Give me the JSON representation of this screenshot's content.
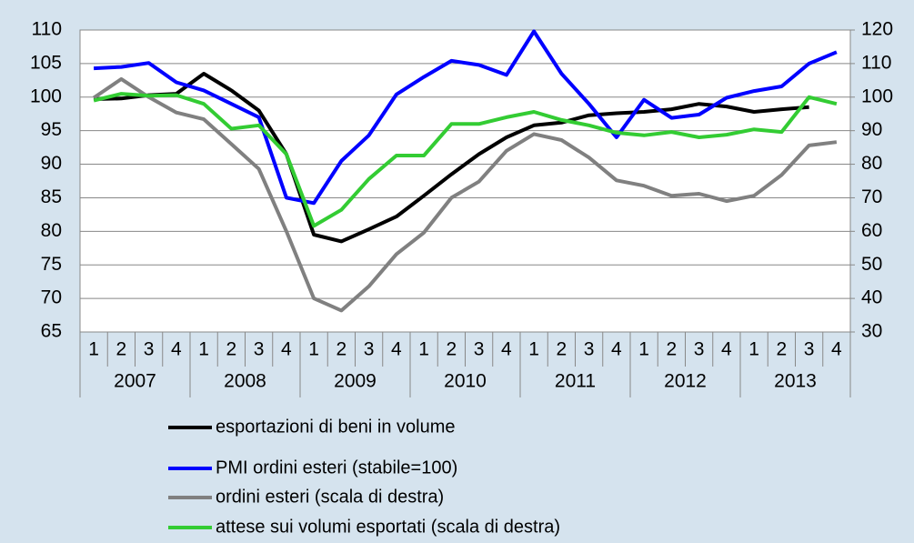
{
  "chart_data": {
    "type": "line",
    "categories": [
      "1",
      "2",
      "3",
      "4",
      "1",
      "2",
      "3",
      "4",
      "1",
      "2",
      "3",
      "4",
      "1",
      "2",
      "3",
      "4",
      "1",
      "2",
      "3",
      "4",
      "1",
      "2",
      "3",
      "4",
      "1",
      "2",
      "3",
      "4"
    ],
    "groups": [
      "2007",
      "2008",
      "2009",
      "2010",
      "2011",
      "2012",
      "2013"
    ],
    "ylim": [
      65,
      110
    ],
    "yticks": [
      65,
      70,
      75,
      80,
      85,
      90,
      95,
      100,
      105,
      110
    ],
    "y2lim": [
      30,
      120
    ],
    "y2ticks": [
      30,
      40,
      50,
      60,
      70,
      80,
      90,
      100,
      110,
      120
    ],
    "grid": true,
    "series": [
      {
        "name": "esportazioni di beni in volume",
        "color": "#000000",
        "values": [
          99.7,
          99.8,
          100.3,
          100.5,
          103.5,
          101,
          98,
          91.5,
          79.5,
          78.5,
          80.3,
          82.2,
          85.3,
          88.5,
          91.5,
          94,
          95.8,
          96.2,
          97.3,
          97.6,
          97.8,
          98.2,
          99,
          98.6,
          97.8,
          98.2,
          98.5,
          null
        ]
      },
      {
        "name": "PMI ordini esteri (stabile=100)",
        "color": "#0000ff",
        "values": [
          104.3,
          104.5,
          105.1,
          102.2,
          101,
          99,
          97,
          85,
          84.2,
          90.5,
          94.3,
          100.4,
          103,
          105.4,
          104.8,
          103.3,
          109.8,
          103.5,
          99,
          94,
          99.6,
          96.9,
          97.4,
          99.9,
          100.9,
          101.6,
          105,
          106.7
        ]
      },
      {
        "name": "ordini esteri (scala di destra)",
        "color": "#808080",
        "axis": "y2",
        "values": [
          99.8,
          105.4,
          100,
          95.4,
          93.4,
          86,
          78.6,
          60,
          40,
          36.4,
          43.6,
          53.2,
          59.6,
          70,
          74.8,
          84,
          89,
          87.2,
          82,
          75.2,
          73.6,
          70.6,
          71.2,
          69,
          70.6,
          76.8,
          85.6,
          86.6
        ]
      },
      {
        "name": "attese sui volumi esportati (scala di destra)",
        "color": "#33cc33",
        "axis": "y2",
        "values": [
          99,
          101,
          100.4,
          100.6,
          98,
          90.6,
          91.6,
          83,
          61.6,
          66.4,
          75.6,
          82.6,
          82.6,
          92,
          92,
          94,
          95.6,
          93.2,
          91.6,
          89.4,
          88.6,
          89.6,
          88,
          88.8,
          90.4,
          89.6,
          100,
          98
        ]
      }
    ]
  }
}
